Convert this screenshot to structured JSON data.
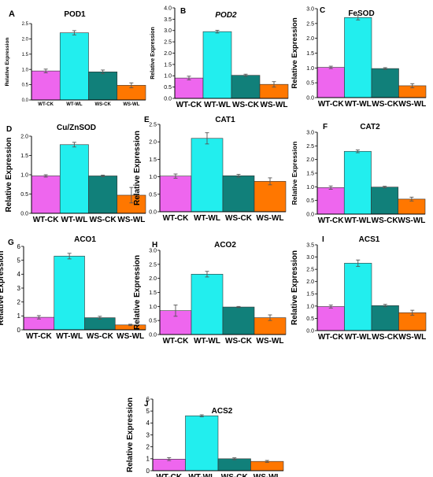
{
  "figure": {
    "bar_colors": [
      "#ee66ee",
      "#22eeee",
      "#11807a",
      "#ff7700"
    ],
    "error_bar_color": "#555555",
    "axis_color": "#000000"
  },
  "chart_data": [
    {
      "type": "bar",
      "panel": "A",
      "title": "POD1",
      "title_italic": false,
      "ylabel": "Relative Expression",
      "categories": [
        "WT-CK",
        "WT-WL",
        "WS-CK",
        "WS-WL"
      ],
      "values": [
        0.95,
        2.2,
        0.92,
        0.48
      ],
      "errors": [
        0.06,
        0.07,
        0.06,
        0.08
      ],
      "ylim": [
        0,
        2.5
      ],
      "yticks": [
        "0.0",
        "0.5",
        "1.0",
        "1.5",
        "2.0",
        "2.5"
      ],
      "grid": false
    },
    {
      "type": "bar",
      "panel": "B",
      "title": "POD2",
      "title_italic": true,
      "ylabel": "Relative Expression",
      "categories": [
        "WT-CK",
        "WT-WL",
        "WS-CK",
        "WS-WL"
      ],
      "values": [
        0.9,
        2.95,
        1.02,
        0.62
      ],
      "errors": [
        0.08,
        0.06,
        0.05,
        0.12
      ],
      "ylim": [
        0,
        4
      ],
      "yticks": [
        "0.0",
        "0.5",
        "1.0",
        "1.5",
        "2.0",
        "2.5",
        "3.0",
        "3.5",
        "4.0"
      ],
      "grid": false
    },
    {
      "type": "bar",
      "panel": "C",
      "title": "FeSOD",
      "title_italic": false,
      "ylabel": "Relative Expression",
      "categories": [
        "WT-CK",
        "WT-WL",
        "WS-CK",
        "WS-WL"
      ],
      "values": [
        1.02,
        2.7,
        0.98,
        0.4
      ],
      "errors": [
        0.04,
        0.08,
        0.03,
        0.07
      ],
      "ylim": [
        0,
        3
      ],
      "yticks": [
        "0.0",
        "0.5",
        "1.0",
        "1.5",
        "2.0",
        "2.5",
        "3.0"
      ],
      "grid": false
    },
    {
      "type": "bar",
      "panel": "D",
      "title": "Cu/ZnSOD",
      "title_italic": false,
      "ylabel": "Relative Expression",
      "categories": [
        "WT-CK",
        "WT-WL",
        "WS-CK",
        "WS-WL"
      ],
      "values": [
        0.97,
        1.78,
        0.97,
        0.47
      ],
      "errors": [
        0.03,
        0.06,
        0.02,
        0.2
      ],
      "ylim": [
        0,
        2
      ],
      "yticks": [
        "0.0",
        "0.5",
        "1.0",
        "1.5",
        "2.0"
      ],
      "grid": false
    },
    {
      "type": "bar",
      "panel": "E",
      "title": "CAT1",
      "title_italic": false,
      "ylabel": "Relative Expression",
      "categories": [
        "WT-CK",
        "WT-WL",
        "WS-CK",
        "WS-WL"
      ],
      "values": [
        1.02,
        2.1,
        1.03,
        0.87
      ],
      "errors": [
        0.06,
        0.16,
        0.04,
        0.1
      ],
      "ylim": [
        0,
        2.5
      ],
      "yticks": [
        "0.0",
        "0.5",
        "1.0",
        "1.5",
        "2.0",
        "2.5"
      ],
      "grid": false
    },
    {
      "type": "bar",
      "panel": "F",
      "title": "CAT2",
      "title_italic": false,
      "ylabel": "Relative Expression",
      "categories": [
        "WT-CK",
        "WT-WL",
        "WS-CK",
        "WS-WL"
      ],
      "values": [
        0.97,
        2.3,
        0.99,
        0.55
      ],
      "errors": [
        0.06,
        0.05,
        0.03,
        0.07
      ],
      "ylim": [
        0,
        3
      ],
      "yticks": [
        "0.0",
        "0.5",
        "1.0",
        "1.5",
        "2.0",
        "2.5",
        "3.0"
      ],
      "grid": false
    },
    {
      "type": "bar",
      "panel": "G",
      "title": "ACO1",
      "title_italic": false,
      "ylabel": "Relative Expression",
      "categories": [
        "WT-CK",
        "WT-WL",
        "WS-CK",
        "WS-WL"
      ],
      "values": [
        0.9,
        5.3,
        0.87,
        0.35
      ],
      "errors": [
        0.12,
        0.2,
        0.1,
        0.05
      ],
      "ylim": [
        0,
        6
      ],
      "yticks": [
        "0",
        "1",
        "2",
        "3",
        "4",
        "5",
        "6"
      ],
      "grid": false
    },
    {
      "type": "bar",
      "panel": "H",
      "title": "ACO2",
      "title_italic": false,
      "ylabel": "Relative Expression",
      "categories": [
        "WT-CK",
        "WT-WL",
        "WS-CK",
        "WS-WL"
      ],
      "values": [
        0.85,
        2.15,
        0.98,
        0.6
      ],
      "errors": [
        0.2,
        0.1,
        0.02,
        0.1
      ],
      "ylim": [
        0,
        3
      ],
      "yticks": [
        "0.0",
        "0.5",
        "1.0",
        "1.5",
        "2.0",
        "2.5",
        "3.0"
      ],
      "grid": false
    },
    {
      "type": "bar",
      "panel": "I",
      "title": "ACS1",
      "title_italic": false,
      "ylabel": "Relative Expression",
      "categories": [
        "WT-CK",
        "WT-WL",
        "WS-CK",
        "WS-WL"
      ],
      "values": [
        0.98,
        2.75,
        1.02,
        0.73
      ],
      "errors": [
        0.06,
        0.13,
        0.05,
        0.1
      ],
      "ylim": [
        0,
        3.5
      ],
      "yticks": [
        "0.0",
        "0.5",
        "1.0",
        "1.5",
        "2.0",
        "2.5",
        "3.0",
        "3.5"
      ],
      "grid": false
    },
    {
      "type": "bar",
      "panel": "J",
      "title": "ACS2",
      "title_italic": false,
      "ylabel": "Relative Expression",
      "categories": [
        "WT-CK",
        "WT-WL",
        "WS-CK",
        "WS-WL"
      ],
      "values": [
        0.97,
        4.6,
        1.0,
        0.78
      ],
      "errors": [
        0.12,
        0.08,
        0.08,
        0.08
      ],
      "ylim": [
        0,
        6
      ],
      "yticks": [
        "0",
        "1",
        "2",
        "3",
        "4",
        "5",
        "6"
      ],
      "grid": false
    }
  ]
}
